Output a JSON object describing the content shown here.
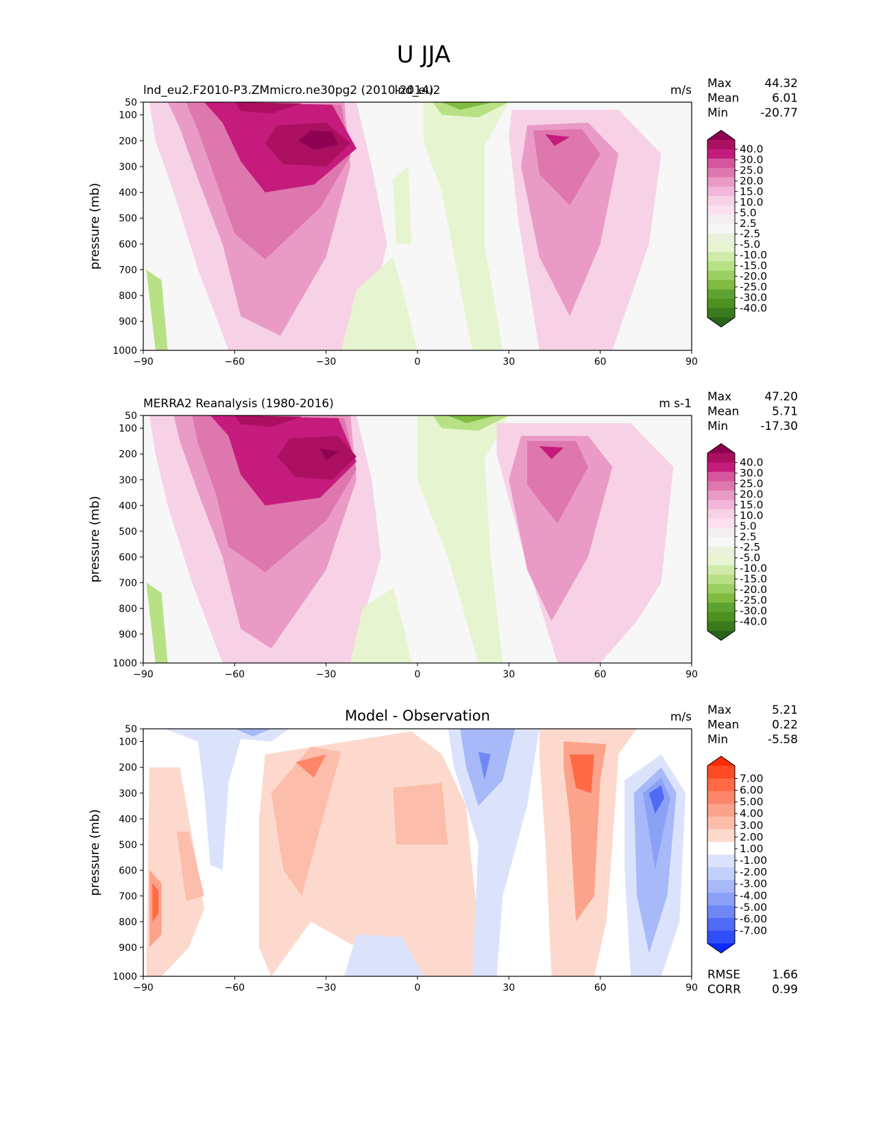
{
  "figure": {
    "title": "U JJA"
  },
  "chart_data": [
    {
      "type": "contour",
      "id": "test",
      "title_left": "lnd_eu2.F2010-P3.ZMmicro.ne30pg2 (2010-2014)",
      "title_center_overlap": "lnd_eu2",
      "units": "m/s",
      "ylabel": "pressure (mb)",
      "xlim": [
        -90,
        90
      ],
      "ylim": [
        1000,
        50
      ],
      "xticks": [
        "−90",
        "−60",
        "−30",
        "0",
        "30",
        "60",
        "90"
      ],
      "yticks": [
        "50",
        "100",
        "200",
        "300",
        "400",
        "500",
        "600",
        "700",
        "800",
        "900",
        "1000"
      ],
      "stats": [
        {
          "label": "Max",
          "value": "44.32"
        },
        {
          "label": "Mean",
          "value": "6.01"
        },
        {
          "label": "Min",
          "value": "-20.77"
        }
      ],
      "colorbar_labels": [
        "40.0",
        "30.0",
        "25.0",
        "20.0",
        "15.0",
        "10.0",
        "5.0",
        "2.5",
        "-2.5",
        "-5.0",
        "-10.0",
        "-15.0",
        "-20.0",
        "-25.0",
        "-30.0",
        "-40.0"
      ],
      "colorbar_colors": [
        "#8e0152",
        "#ab1060",
        "#c51b7d",
        "#d5569d",
        "#de77ae",
        "#e99bc6",
        "#f1b6da",
        "#f7d2e6",
        "#fde0ef",
        "#f5eef1",
        "#f7f7f7",
        "#eaf2de",
        "#e6f5d0",
        "#cfeaa9",
        "#b8e186",
        "#9bcf64",
        "#7fbc41",
        "#5fa234",
        "#4d9221",
        "#3a7a1c",
        "#276419"
      ]
    },
    {
      "type": "contour",
      "id": "reference",
      "title_left": "MERRA2 Reanalysis (1980-2016)",
      "units": "m s-1",
      "ylabel": "pressure (mb)",
      "xlim": [
        -90,
        90
      ],
      "ylim": [
        1000,
        50
      ],
      "xticks": [
        "−90",
        "−60",
        "−30",
        "0",
        "30",
        "60",
        "90"
      ],
      "yticks": [
        "50",
        "100",
        "200",
        "300",
        "400",
        "500",
        "600",
        "700",
        "800",
        "900",
        "1000"
      ],
      "stats": [
        {
          "label": "Max",
          "value": "47.20"
        },
        {
          "label": "Mean",
          "value": "5.71"
        },
        {
          "label": "Min",
          "value": "-17.30"
        }
      ],
      "colorbar_labels": [
        "40.0",
        "30.0",
        "25.0",
        "20.0",
        "15.0",
        "10.0",
        "5.0",
        "2.5",
        "-2.5",
        "-5.0",
        "-10.0",
        "-15.0",
        "-20.0",
        "-25.0",
        "-30.0",
        "-40.0"
      ],
      "colorbar_colors": [
        "#8e0152",
        "#ab1060",
        "#c51b7d",
        "#d5569d",
        "#de77ae",
        "#e99bc6",
        "#f1b6da",
        "#f7d2e6",
        "#fde0ef",
        "#f5eef1",
        "#f7f7f7",
        "#eaf2de",
        "#e6f5d0",
        "#cfeaa9",
        "#b8e186",
        "#9bcf64",
        "#7fbc41",
        "#5fa234",
        "#4d9221",
        "#3a7a1c",
        "#276419"
      ]
    },
    {
      "type": "contour",
      "id": "difference",
      "title_center": "Model - Observation",
      "units": "m/s",
      "ylabel": "pressure (mb)",
      "xlim": [
        -90,
        90
      ],
      "ylim": [
        1000,
        50
      ],
      "xticks": [
        "−90",
        "−60",
        "−30",
        "0",
        "30",
        "60",
        "90"
      ],
      "yticks": [
        "50",
        "100",
        "200",
        "300",
        "400",
        "500",
        "600",
        "700",
        "800",
        "900",
        "1000"
      ],
      "stats": [
        {
          "label": "Max",
          "value": "5.21"
        },
        {
          "label": "Mean",
          "value": "0.22"
        },
        {
          "label": "Min",
          "value": "-5.58"
        }
      ],
      "extra_stats": [
        {
          "label": "RMSE",
          "value": "1.66"
        },
        {
          "label": "CORR",
          "value": "0.99"
        }
      ],
      "colorbar_labels": [
        "7.00",
        "6.00",
        "5.00",
        "4.00",
        "3.00",
        "2.00",
        "1.00",
        "-1.00",
        "-2.00",
        "-3.00",
        "-4.00",
        "-5.00",
        "-6.00",
        "-7.00"
      ],
      "colorbar_colors": [
        "#ff2a0a",
        "#ff4a26",
        "#ff6a45",
        "#fd8668",
        "#fca38b",
        "#fcbdab",
        "#fdd9cd",
        "#ffffff",
        "#dbe3fc",
        "#c3d0fb",
        "#a8b9f9",
        "#8ca1f6",
        "#6f87f4",
        "#4f6af5",
        "#2f4ef8",
        "#0a2aff"
      ]
    }
  ]
}
